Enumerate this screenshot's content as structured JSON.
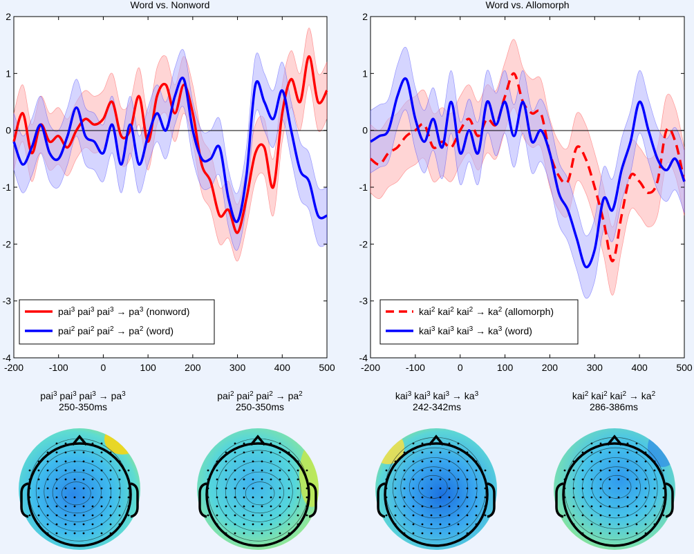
{
  "chart_data": [
    {
      "type": "line",
      "title": "Word vs. Nonword",
      "xlabel": "",
      "ylabel": "",
      "xlim": [
        -200,
        500
      ],
      "ylim": [
        -4,
        2
      ],
      "xticks": [
        "-200",
        "-100",
        "0",
        "100",
        "200",
        "300",
        "400",
        "500"
      ],
      "yticks": [
        "2",
        "1",
        "0",
        "-1",
        "-2",
        "-3",
        "-4"
      ],
      "grid": false,
      "legend_position": "lower-left",
      "x": [
        -200,
        -180,
        -160,
        -140,
        -120,
        -100,
        -80,
        -60,
        -40,
        -20,
        0,
        20,
        40,
        60,
        80,
        100,
        120,
        140,
        160,
        180,
        200,
        220,
        240,
        260,
        280,
        300,
        320,
        340,
        360,
        380,
        400,
        420,
        440,
        460,
        480,
        500
      ],
      "series": [
        {
          "name": "pai³ pai³ pai³ → pa³ (nonword)",
          "label_parts": [
            "pai",
            "3",
            " pai",
            "3",
            " pai",
            "3",
            " → pa",
            "3",
            " (nonword)"
          ],
          "color": "#ff0000",
          "dashed": false,
          "values": [
            -0.2,
            0.3,
            -0.4,
            0.1,
            -0.2,
            -0.1,
            -0.3,
            0.0,
            0.2,
            0.1,
            0.2,
            0.5,
            -0.1,
            0.0,
            0.6,
            -0.2,
            0.6,
            0.8,
            0.3,
            0.8,
            0.3,
            -0.6,
            -0.9,
            -1.5,
            -1.4,
            -1.8,
            -1.2,
            -0.4,
            -0.3,
            -1.0,
            0.3,
            0.9,
            0.5,
            1.3,
            0.5,
            0.7
          ],
          "band": 0.5
        },
        {
          "name": "pai² pai² pai² → pa² (word)",
          "label_parts": [
            "pai",
            "2",
            " pai",
            "2",
            " pai",
            "2",
            " → pa",
            "2",
            " (word)"
          ],
          "color": "#0000ff",
          "dashed": false,
          "values": [
            -0.2,
            -0.6,
            -0.3,
            0.1,
            -0.4,
            -0.5,
            -0.1,
            0.4,
            -0.1,
            -0.2,
            -0.4,
            0.1,
            -0.6,
            0.1,
            -0.6,
            -0.1,
            0.3,
            0.0,
            0.6,
            0.9,
            0.0,
            -0.5,
            -0.5,
            -0.3,
            -1.2,
            -1.6,
            -0.8,
            0.8,
            0.5,
            0.2,
            0.7,
            0.0,
            -0.7,
            -0.9,
            -1.5,
            -1.5
          ],
          "band": 0.5
        }
      ]
    },
    {
      "type": "line",
      "title": "Word vs. Allomorph",
      "xlabel": "",
      "ylabel": "",
      "xlim": [
        -200,
        500
      ],
      "ylim": [
        -4,
        2
      ],
      "xticks": [
        "-200",
        "-100",
        "0",
        "100",
        "200",
        "300",
        "400",
        "500"
      ],
      "yticks": [
        "2",
        "1",
        "0",
        "-1",
        "-2",
        "-3",
        "-4"
      ],
      "grid": false,
      "legend_position": "lower-left",
      "x": [
        -200,
        -180,
        -160,
        -140,
        -120,
        -100,
        -80,
        -60,
        -40,
        -20,
        0,
        20,
        40,
        60,
        80,
        100,
        120,
        140,
        160,
        180,
        200,
        220,
        240,
        260,
        280,
        300,
        320,
        340,
        360,
        380,
        400,
        420,
        440,
        460,
        480,
        500
      ],
      "series": [
        {
          "name": "kai² kai² kai² → ka² (allomorph)",
          "label_parts": [
            "kai",
            "2",
            " kai",
            "2",
            " kai",
            "2",
            " → ka",
            "2",
            " (allomorph)"
          ],
          "color": "#ff0000",
          "dashed": true,
          "values": [
            -0.5,
            -0.6,
            -0.4,
            -0.3,
            -0.1,
            0.0,
            0.1,
            -0.3,
            -0.2,
            -0.3,
            0.0,
            0.2,
            -0.1,
            0.2,
            0.1,
            0.6,
            1.0,
            0.5,
            0.3,
            0.3,
            -0.4,
            -0.8,
            -0.9,
            -0.3,
            -0.5,
            -1.0,
            -1.6,
            -2.3,
            -1.5,
            -0.8,
            -0.9,
            -1.1,
            -0.9,
            0.0,
            -0.2,
            -0.9
          ],
          "band": 0.6
        },
        {
          "name": "kai³ kai³ kai³ → ka³ (word)",
          "label_parts": [
            "kai",
            "3",
            " kai",
            "3",
            " kai",
            "3",
            " → ka",
            "3",
            " (word)"
          ],
          "color": "#0000ff",
          "dashed": false,
          "values": [
            -0.2,
            -0.1,
            0.0,
            0.6,
            0.9,
            0.2,
            -0.2,
            0.2,
            -0.3,
            0.5,
            -0.4,
            0.0,
            -0.4,
            0.5,
            0.1,
            0.5,
            -0.1,
            0.5,
            -0.2,
            0.0,
            -0.4,
            -1.1,
            -1.4,
            -1.9,
            -2.4,
            -2.1,
            -1.2,
            -1.4,
            -0.7,
            -0.2,
            0.5,
            0.0,
            -0.5,
            -0.7,
            -0.5,
            -0.9
          ],
          "band": 0.55
        }
      ]
    }
  ],
  "topomaps": [
    {
      "label_parts": [
        "pai",
        "3",
        " pai",
        "3",
        " pai",
        "3",
        " → pa",
        "3"
      ],
      "time_window": "250-350ms"
    },
    {
      "label_parts": [
        "pai",
        "2",
        " pai",
        "2",
        " pai",
        "2",
        " → pa",
        "2"
      ],
      "time_window": "250-350ms"
    },
    {
      "label_parts": [
        "kai",
        "3",
        " kai",
        "3",
        " kai",
        "3",
        " → ka",
        "3"
      ],
      "time_window": "242-342ms"
    },
    {
      "label_parts": [
        "kai",
        "2",
        " kai",
        "2",
        " kai",
        "2",
        " → ka",
        "2"
      ],
      "time_window": "286-386ms"
    }
  ],
  "colors": {
    "red_line": "#ff0000",
    "blue_line": "#0000ff",
    "red_band": "#ffb3b3",
    "blue_band": "#b3b3ff",
    "background": "#edf3fd",
    "topo_blue": "#1f8be8",
    "topo_cyan": "#33ccf0",
    "topo_green": "#a8e85c",
    "topo_yellow": "#ffd60a"
  }
}
